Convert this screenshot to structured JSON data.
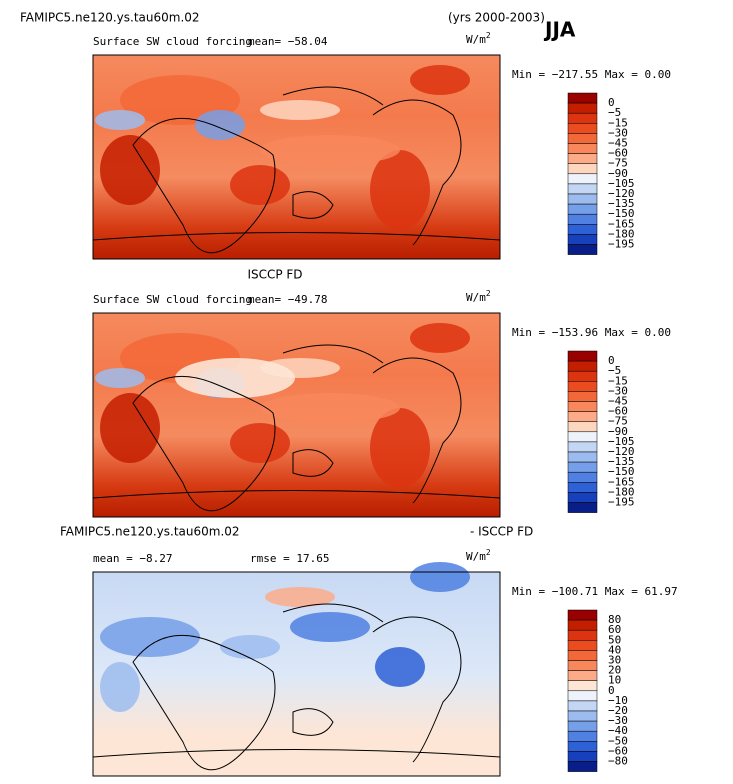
{
  "header": {
    "case": "FAMIPC5.ne120.ys.tau60m.02",
    "years": "(yrs 2000-2003)",
    "season": "JJA"
  },
  "panels": [
    {
      "field": "Surface SW cloud forcing",
      "mean": "mean= −58.04",
      "units": {
        "base": "W/m",
        "sup": "2"
      },
      "minmax": "Min = −217.55  Max =    0.00",
      "colorbar": {
        "labels": [
          "0",
          "−5",
          "−15",
          "−30",
          "−45",
          "−60",
          "−75",
          "−90",
          "−105",
          "−120",
          "−135",
          "−150",
          "−165",
          "−180",
          "−195"
        ],
        "colors": [
          "#990000",
          "#c41e00",
          "#dc3410",
          "#ea4c20",
          "#f36838",
          "#f8875c",
          "#fbab88",
          "#fdd6bf",
          "#eef3fb",
          "#c3d6f4",
          "#9cbcef",
          "#759fe8",
          "#4f80e2",
          "#2e60d6",
          "#1740bd",
          "#0a1e8a"
        ]
      }
    },
    {
      "title": "ISCCP FD",
      "field": "Surface SW cloud forcing",
      "mean": "mean=  −49.78",
      "units": {
        "base": "W/m",
        "sup": "2"
      },
      "minmax": "Min = −153.96  Max =    0.00",
      "colorbar": {
        "labels": [
          "0",
          "−5",
          "−15",
          "−30",
          "−45",
          "−60",
          "−75",
          "−90",
          "−105",
          "−120",
          "−135",
          "−150",
          "−165",
          "−180",
          "−195"
        ],
        "colors": [
          "#990000",
          "#c41e00",
          "#dc3410",
          "#ea4c20",
          "#f36838",
          "#f8875c",
          "#fbab88",
          "#fdd6bf",
          "#eef3fb",
          "#c3d6f4",
          "#9cbcef",
          "#759fe8",
          "#4f80e2",
          "#2e60d6",
          "#1740bd",
          "#0a1e8a"
        ]
      }
    },
    {
      "title": "FAMIPC5.ne120.ys.tau60m.02",
      "title_right": "- ISCCP FD",
      "mean": "mean =   −8.27",
      "rmse": "rmse =  17.65",
      "units": {
        "base": "W/m",
        "sup": "2"
      },
      "minmax": "Min = −100.71  Max =  61.97",
      "colorbar": {
        "labels": [
          "80",
          "60",
          "50",
          "40",
          "30",
          "20",
          "10",
          "0",
          "−10",
          "−20",
          "−30",
          "−40",
          "−50",
          "−60",
          "−80"
        ],
        "colors": [
          "#990000",
          "#c41e00",
          "#dc3410",
          "#ea4c20",
          "#f36838",
          "#f8875c",
          "#fbab88",
          "#fde6d6",
          "#eef3fb",
          "#c3d6f4",
          "#9cbcef",
          "#759fe8",
          "#4f80e2",
          "#2e60d6",
          "#1740bd",
          "#0a1e8a"
        ]
      }
    }
  ]
}
